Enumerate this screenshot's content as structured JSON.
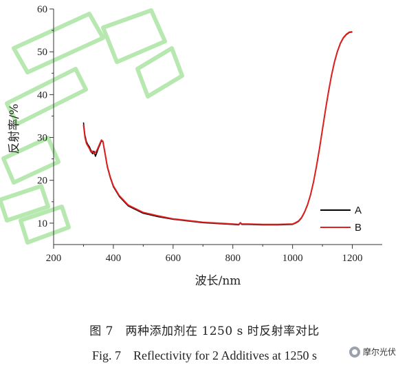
{
  "chart_data": {
    "type": "line",
    "xlabel": "波长/nm",
    "ylabel": "反射率/%",
    "xlim": [
      200,
      1300
    ],
    "ylim": [
      5,
      60
    ],
    "xticks": [
      200,
      400,
      600,
      800,
      1000,
      1200
    ],
    "yticks": [
      10,
      20,
      30,
      40,
      50,
      60
    ],
    "grid": false,
    "legend_position": "bottom-right",
    "series": [
      {
        "name": "A",
        "color": "#000000",
        "x": [
          300,
          305,
          310,
          315,
          320,
          325,
          330,
          335,
          340,
          345,
          350,
          355,
          360,
          365,
          370,
          375,
          380,
          390,
          400,
          420,
          450,
          500,
          550,
          600,
          650,
          700,
          750,
          800,
          820,
          825,
          830,
          850,
          900,
          950,
          1000,
          1010,
          1020,
          1030,
          1040,
          1050,
          1060,
          1070,
          1080,
          1090,
          1100,
          1110,
          1120,
          1130,
          1140,
          1150,
          1160,
          1170,
          1180,
          1190,
          1200
        ],
        "y": [
          33.5,
          30.5,
          29,
          28.3,
          27.8,
          27,
          26.2,
          26.8,
          25.6,
          26.5,
          27.5,
          28.3,
          29.2,
          29.0,
          27.0,
          25.0,
          23.0,
          20.5,
          18.5,
          16.2,
          14.0,
          12.3,
          11.5,
          10.9,
          10.5,
          10.1,
          9.9,
          9.7,
          9.6,
          10.0,
          9.7,
          9.7,
          9.6,
          9.6,
          9.7,
          10.0,
          10.4,
          11.2,
          12.5,
          14.2,
          16.5,
          19.5,
          23.2,
          27.3,
          31.8,
          36.3,
          40.5,
          44.3,
          47.5,
          50.0,
          51.9,
          53.2,
          54.0,
          54.5,
          54.6
        ]
      },
      {
        "name": "B",
        "color": "#e02020",
        "x": [
          300,
          305,
          310,
          315,
          320,
          325,
          330,
          335,
          340,
          345,
          350,
          355,
          360,
          365,
          370,
          375,
          380,
          390,
          400,
          420,
          450,
          500,
          550,
          600,
          650,
          700,
          750,
          800,
          820,
          825,
          830,
          850,
          900,
          950,
          1000,
          1010,
          1020,
          1030,
          1040,
          1050,
          1060,
          1070,
          1080,
          1090,
          1100,
          1110,
          1120,
          1130,
          1140,
          1150,
          1160,
          1170,
          1180,
          1190,
          1200
        ],
        "y": [
          33.0,
          30.0,
          28.6,
          28.0,
          27.4,
          26.6,
          26.8,
          26.2,
          26.5,
          27.0,
          27.8,
          28.6,
          29.4,
          29.1,
          27.2,
          25.2,
          23.2,
          20.7,
          18.7,
          16.4,
          14.2,
          12.5,
          11.7,
          11.0,
          10.6,
          10.2,
          10.0,
          9.8,
          9.7,
          10.1,
          9.8,
          9.8,
          9.7,
          9.7,
          9.8,
          10.1,
          10.5,
          11.3,
          12.6,
          14.3,
          16.6,
          19.6,
          23.3,
          27.4,
          31.9,
          36.4,
          40.6,
          44.4,
          47.6,
          50.1,
          52.0,
          53.3,
          54.1,
          54.6,
          54.7
        ]
      }
    ]
  },
  "caption": {
    "cn": "图 7　两种添加剂在 1250 s 时反射率对比",
    "en": "Fig. 7　Reflectivity for 2 Additives at 1250 s"
  },
  "watermark": {
    "text": "摩尔光伏",
    "color": "#b6e8b0"
  }
}
